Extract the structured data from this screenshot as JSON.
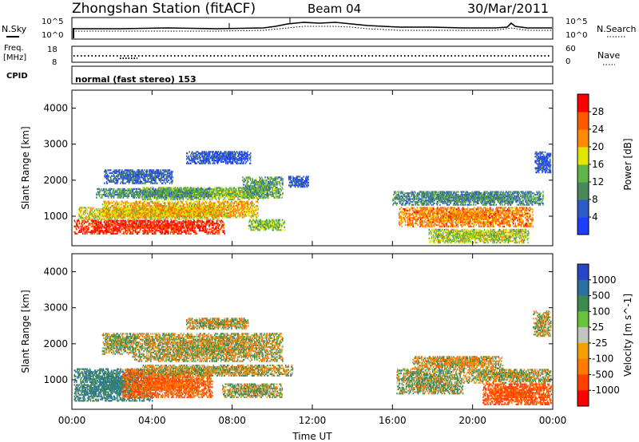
{
  "header": {
    "station": "Zhongshan Station (fitACF)",
    "beam": "Beam 04",
    "date": "30/Mar/2011"
  },
  "strip_labels": {
    "nsky": "N.Sky",
    "freq_line1": "Freq.",
    "freq_line2": "[MHz]",
    "cpid": "CPID",
    "nsearch": "N.Search",
    "nave": "Nave",
    "nsky_ticks": [
      "10^5",
      "10^0"
    ],
    "nsearch_ticks": [
      "10^5",
      "10^0"
    ],
    "freq_ticks": [
      "18",
      "8"
    ],
    "nave_ticks": [
      "60",
      "0"
    ],
    "cpid_text": "normal (fast stereo) 153"
  },
  "chart_data": [
    {
      "type": "heatmap",
      "title": "",
      "xlabel": "Time UT",
      "ylabel": "Slant Range [km]",
      "xlim": [
        0,
        24
      ],
      "ylim": [
        180,
        4500
      ],
      "x_ticks": [
        "00:00",
        "04:00",
        "08:00",
        "12:00",
        "16:00",
        "20:00",
        "00:00"
      ],
      "y_ticks": [
        "1000",
        "2000",
        "3000",
        "4000"
      ],
      "colorbar": {
        "label": "Power [dB]",
        "ticks": [
          "4",
          "8",
          "12",
          "16",
          "20",
          "24",
          "28"
        ],
        "range": [
          0,
          30
        ],
        "colors": [
          "#1f3cff",
          "#2d5cc6",
          "#4a8a5a",
          "#5fb546",
          "#e2e600",
          "#ff8a00",
          "#ff5a00",
          "#ff0000"
        ]
      },
      "echo_regions": [
        {
          "t": [
            0.1,
            7.6
          ],
          "r": [
            500,
            900
          ],
          "level": 27
        },
        {
          "t": [
            0.3,
            7.5
          ],
          "r": [
            900,
            1250
          ],
          "level": 17
        },
        {
          "t": [
            1.5,
            9.3
          ],
          "r": [
            950,
            1400
          ],
          "level": 19
        },
        {
          "t": [
            3.5,
            9.8
          ],
          "r": [
            1450,
            1800
          ],
          "level": 14
        },
        {
          "t": [
            1.2,
            7.0
          ],
          "r": [
            1500,
            1750
          ],
          "level": 10
        },
        {
          "t": [
            1.6,
            5.0
          ],
          "r": [
            1900,
            2300
          ],
          "level": 6
        },
        {
          "t": [
            5.7,
            8.9
          ],
          "r": [
            2450,
            2800
          ],
          "level": 4
        },
        {
          "t": [
            8.5,
            10.5
          ],
          "r": [
            1500,
            2100
          ],
          "level": 11
        },
        {
          "t": [
            10.8,
            11.8
          ],
          "r": [
            1800,
            2100
          ],
          "level": 5
        },
        {
          "t": [
            8.8,
            10.6
          ],
          "r": [
            600,
            900
          ],
          "level": 13
        },
        {
          "t": [
            16.3,
            23.0
          ],
          "r": [
            700,
            1250
          ],
          "level": 22
        },
        {
          "t": [
            16.0,
            23.5
          ],
          "r": [
            1300,
            1700
          ],
          "level": 9
        },
        {
          "t": [
            17.8,
            22.8
          ],
          "r": [
            250,
            650
          ],
          "level": 15
        },
        {
          "t": [
            23.1,
            23.9
          ],
          "r": [
            2200,
            2800
          ],
          "level": 4
        }
      ]
    },
    {
      "type": "heatmap",
      "title": "",
      "xlabel": "Time UT",
      "ylabel": "Slant Range [km]",
      "xlim": [
        0,
        24
      ],
      "ylim": [
        180,
        4500
      ],
      "x_ticks": [
        "00:00",
        "04:00",
        "08:00",
        "12:00",
        "16:00",
        "20:00",
        "00:00"
      ],
      "y_ticks": [
        "1000",
        "2000",
        "3000",
        "4000"
      ],
      "colorbar": {
        "label": "Velocity [m s^-1]",
        "ticks": [
          "1000",
          "500",
          "100",
          "25",
          "-25",
          "-100",
          "-500",
          "-1000"
        ],
        "colors": [
          "#2a45c8",
          "#2a70a0",
          "#3c8a50",
          "#6ac23a",
          "#c4c4c0",
          "#f5a000",
          "#ff7a00",
          "#ff4000",
          "#ff0000"
        ]
      },
      "echo_regions": [
        {
          "t": [
            0.1,
            4.0
          ],
          "r": [
            400,
            1300
          ],
          "v": 300
        },
        {
          "t": [
            2.5,
            7.0
          ],
          "r": [
            500,
            1300
          ],
          "v": -300
        },
        {
          "t": [
            3.5,
            11.0
          ],
          "r": [
            1100,
            1400
          ],
          "v": 0
        },
        {
          "t": [
            3.0,
            10.5
          ],
          "r": [
            1500,
            2300
          ],
          "v": 0
        },
        {
          "t": [
            5.7,
            8.8
          ],
          "r": [
            2400,
            2700
          ],
          "v": 0
        },
        {
          "t": [
            1.5,
            3.2
          ],
          "r": [
            1700,
            2300
          ],
          "v": 70
        },
        {
          "t": [
            7.5,
            10.5
          ],
          "r": [
            500,
            900
          ],
          "v": 60
        },
        {
          "t": [
            16.2,
            19.5
          ],
          "r": [
            600,
            1300
          ],
          "v": 80
        },
        {
          "t": [
            19.5,
            23.9
          ],
          "r": [
            900,
            1300
          ],
          "v": 0
        },
        {
          "t": [
            20.5,
            23.9
          ],
          "r": [
            300,
            900
          ],
          "v": -400
        },
        {
          "t": [
            17.0,
            21.5
          ],
          "r": [
            1300,
            1650
          ],
          "v": -60
        },
        {
          "t": [
            23.0,
            23.9
          ],
          "r": [
            2200,
            2900
          ],
          "v": 0
        }
      ]
    }
  ]
}
